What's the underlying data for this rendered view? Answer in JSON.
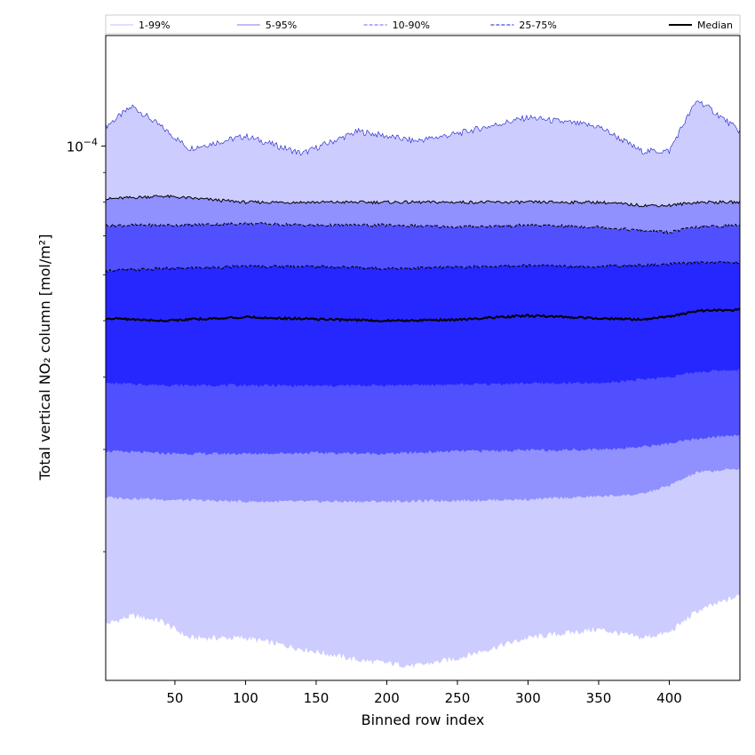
{
  "chart_data": {
    "type": "area",
    "xlabel": "Binned row index",
    "ylabel": "Total vertical NO₂ column [mol/m²]",
    "x_range": [
      1,
      450
    ],
    "x_ticks": [
      50,
      100,
      150,
      200,
      250,
      300,
      350,
      400
    ],
    "y_scale": "log",
    "y_range": [
      1.2e-05,
      0.000155
    ],
    "y_major_tick": {
      "value": 0.0001,
      "base": "10",
      "exponent": "−4"
    },
    "y_minor_ticks": [
      2e-05,
      3e-05,
      4e-05,
      5e-05,
      6e-05,
      7e-05,
      8e-05,
      9e-05
    ],
    "grid": false,
    "legend_position": "top",
    "legend": [
      {
        "label": "1-99%",
        "color": "#ccccff",
        "style": "solid"
      },
      {
        "label": "5-95%",
        "color": "#9999ee",
        "style": "solid"
      },
      {
        "label": "10-90%",
        "color": "#8080f0",
        "style": "dashed"
      },
      {
        "label": "25-75%",
        "color": "#4848e8",
        "style": "dashed"
      },
      {
        "label": "Median",
        "color": "#000000",
        "style": "solid"
      }
    ],
    "bands": [
      {
        "name": "1-99%",
        "color": "#ccccff",
        "x": [
          1,
          20,
          40,
          60,
          100,
          140,
          180,
          220,
          250,
          300,
          350,
          380,
          400,
          420,
          450
        ],
        "lower": [
          1.5e-05,
          1.55e-05,
          1.52e-05,
          1.42e-05,
          1.42e-05,
          1.36e-05,
          1.3e-05,
          1.27e-05,
          1.31e-05,
          1.42e-05,
          1.47e-05,
          1.42e-05,
          1.45e-05,
          1.58e-05,
          1.68e-05
        ],
        "upper": [
          0.000108,
          0.000117,
          0.000108,
          9.9e-05,
          0.000104,
          9.7e-05,
          0.000106,
          0.000102,
          0.000105,
          0.000112,
          0.000108,
          9.8e-05,
          9.8e-05,
          0.00012,
          0.000106
        ]
      },
      {
        "name": "5-95%",
        "color": "#9090ff",
        "x": [
          1,
          40,
          100,
          150,
          200,
          250,
          300,
          350,
          380,
          400,
          420,
          450
        ],
        "lower": [
          2.48e-05,
          2.46e-05,
          2.44e-05,
          2.44e-05,
          2.44e-05,
          2.45e-05,
          2.46e-05,
          2.49e-05,
          2.51e-05,
          2.6e-05,
          2.74e-05,
          2.78e-05
        ],
        "upper": [
          8.1e-05,
          8.2e-05,
          8e-05,
          8e-05,
          8e-05,
          8e-05,
          8e-05,
          8e-05,
          7.9e-05,
          7.9e-05,
          8e-05,
          8e-05
        ]
      },
      {
        "name": "10-90%",
        "color": "#5050ff",
        "x": [
          1,
          50,
          100,
          150,
          200,
          250,
          300,
          350,
          380,
          400,
          420,
          450
        ],
        "lower": [
          2.98e-05,
          2.95e-05,
          2.95e-05,
          2.96e-05,
          2.95e-05,
          2.98e-05,
          2.99e-05,
          3e-05,
          3.03e-05,
          3.07e-05,
          3.13e-05,
          3.18e-05
        ],
        "upper": [
          7.3e-05,
          7.3e-05,
          7.35e-05,
          7.3e-05,
          7.3e-05,
          7.25e-05,
          7.3e-05,
          7.25e-05,
          7.15e-05,
          7.1e-05,
          7.25e-05,
          7.3e-05
        ]
      },
      {
        "name": "25-75%",
        "color": "#2626ff",
        "x": [
          1,
          50,
          100,
          150,
          200,
          250,
          300,
          350,
          400,
          420,
          450
        ],
        "lower": [
          3.9e-05,
          3.87e-05,
          3.87e-05,
          3.86e-05,
          3.87e-05,
          3.88e-05,
          3.9e-05,
          3.9e-05,
          4e-05,
          4.08e-05,
          4.12e-05
        ],
        "upper": [
          6.1e-05,
          6.15e-05,
          6.2e-05,
          6.2e-05,
          6.15e-05,
          6.18e-05,
          6.22e-05,
          6.2e-05,
          6.25e-05,
          6.3e-05,
          6.3e-05
        ]
      }
    ],
    "median": {
      "name": "Median",
      "x": [
        1,
        40,
        100,
        150,
        200,
        250,
        300,
        350,
        380,
        400,
        420,
        450
      ],
      "y": [
        5.05e-05,
        5e-05,
        5.07e-05,
        5.03e-05,
        5e-05,
        5.02e-05,
        5.1e-05,
        5.05e-05,
        5.02e-05,
        5.08e-05,
        5.2e-05,
        5.22e-05
      ]
    }
  }
}
